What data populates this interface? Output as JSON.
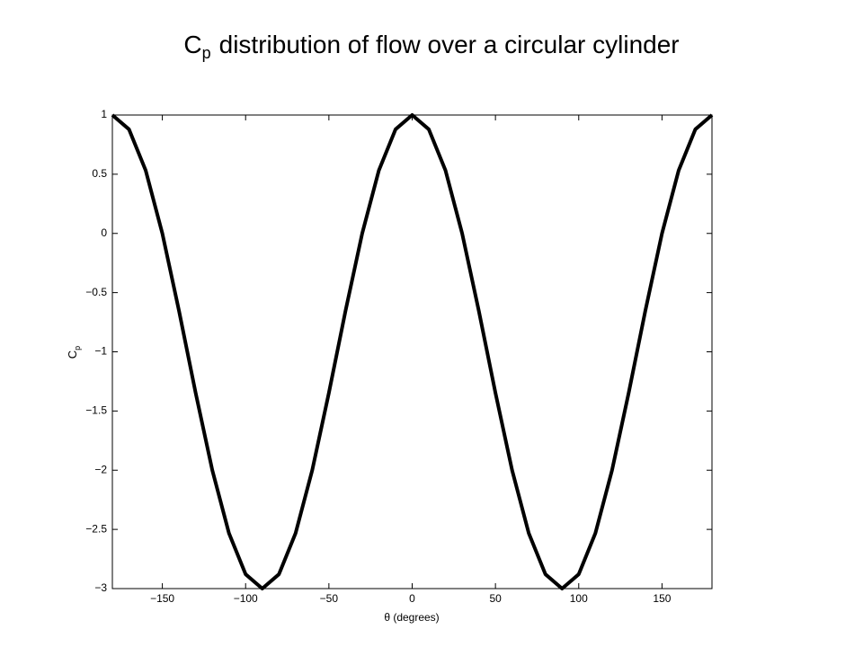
{
  "chart_data": {
    "type": "line",
    "title": {
      "symbol": "C",
      "subscript": "p",
      "text": "distribution of flow over a circular cylinder"
    },
    "xlabel": "θ (degrees)",
    "ylabel": {
      "symbol": "C",
      "subscript": "p"
    },
    "x": [
      -180,
      -170,
      -160,
      -150,
      -140,
      -130,
      -120,
      -110,
      -100,
      -90,
      -80,
      -70,
      -60,
      -50,
      -40,
      -30,
      -20,
      -10,
      0,
      10,
      20,
      30,
      40,
      50,
      60,
      70,
      80,
      90,
      100,
      110,
      120,
      130,
      140,
      150,
      160,
      170,
      180
    ],
    "series": [
      {
        "color": "#000000",
        "values": [
          1,
          0.879,
          0.532,
          0,
          -0.653,
          -1.347,
          -2,
          -2.532,
          -2.879,
          -3,
          -2.879,
          -2.532,
          -2,
          -1.347,
          -0.653,
          0,
          0.532,
          0.879,
          1,
          0.879,
          0.532,
          0,
          -0.653,
          -1.347,
          -2,
          -2.532,
          -2.879,
          -3,
          -2.879,
          -2.532,
          -2,
          -1.347,
          -0.653,
          0,
          0.532,
          0.879,
          1
        ]
      }
    ],
    "xlim": [
      -180,
      180
    ],
    "ylim": [
      -3,
      1
    ],
    "xticks": [
      {
        "value": -150,
        "label": "−150"
      },
      {
        "value": -100,
        "label": "−100"
      },
      {
        "value": -50,
        "label": "−50"
      },
      0,
      50,
      100,
      150
    ],
    "yticks": [
      {
        "value": -3,
        "label": "−3"
      },
      {
        "value": -2.5,
        "label": "−2.5"
      },
      {
        "value": -2,
        "label": "−2"
      },
      {
        "value": -1.5,
        "label": "−1.5"
      },
      {
        "value": -1,
        "label": "−1"
      },
      {
        "value": -0.5,
        "label": "−0.5"
      },
      0,
      0.5,
      1
    ],
    "grid": false
  }
}
